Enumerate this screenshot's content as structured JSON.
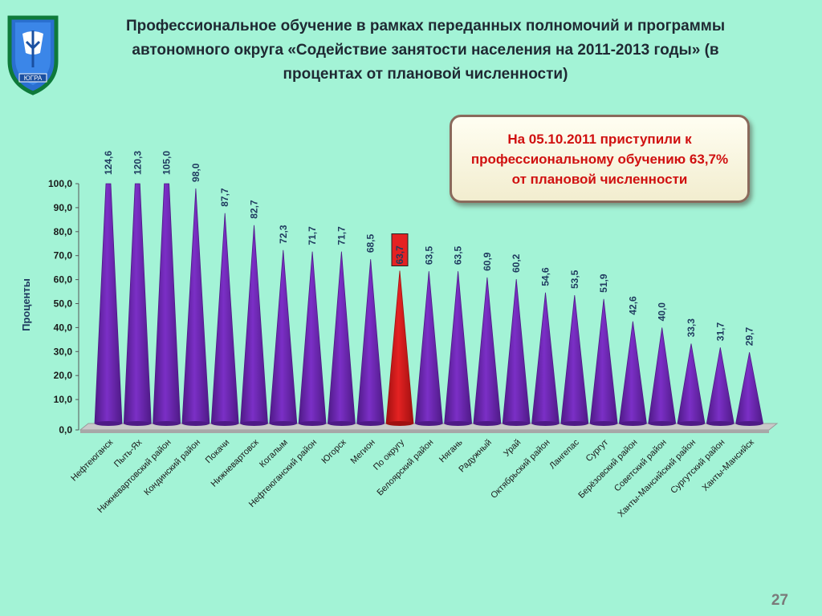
{
  "slide": {
    "title": "Профессиональное обучение в рамках переданных полномочий и программы автономного округа «Содействие занятости населения на 2011-2013 годы» (в процентах от плановой численности)",
    "callout": "На 05.10.2011 приступили к\nпрофессиональному обучению  63,7%\nот плановой численности",
    "page_number": "27",
    "logo_text": "ЮГРА"
  },
  "colors": {
    "bar": "#7b2fc6",
    "bar_dark": "#4e1a86",
    "highlight": "#e42222",
    "highlight_dark": "#a01010",
    "background": "#a3f3d6",
    "label_text": "#1f3a5f"
  },
  "chart_data": {
    "type": "bar",
    "shape": "cone",
    "ylabel": "Проценты",
    "xlabel": "",
    "ylim": [
      0,
      100
    ],
    "yticks": [
      "0,0",
      "10,0",
      "20,0",
      "30,0",
      "40,0",
      "50,0",
      "60,0",
      "70,0",
      "80,0",
      "90,0",
      "100,0"
    ],
    "grid": false,
    "legend": "none",
    "highlight_category": "По округу",
    "categories": [
      "Нефтеюганск",
      "Пыть-Ях",
      "Нижневартовский район",
      "Кондинский район",
      "Покачи",
      "Нижневартовск",
      "Когалым",
      "Нефтеюганский район",
      "Югорск",
      "Мегион",
      "По округу",
      "Белоярский район",
      "Нягань",
      "Радужный",
      "Урай",
      "Октябрьский район",
      "Лангепас",
      "Сургут",
      "Берёзовский район",
      "Советский район",
      "Ханты-Мансийский район",
      "Сургутский район",
      "Ханты-Мансийск"
    ],
    "values": [
      124.6,
      120.3,
      105.0,
      98.0,
      87.7,
      82.7,
      72.3,
      71.7,
      71.7,
      68.5,
      63.7,
      63.5,
      63.5,
      60.9,
      60.2,
      54.6,
      53.5,
      51.9,
      42.6,
      40.0,
      33.3,
      31.7,
      29.7
    ],
    "data_labels": [
      "124,6",
      "120,3",
      "105,0",
      "98,0",
      "87,7",
      "82,7",
      "72,3",
      "71,7",
      "71,7",
      "68,5",
      "63,7",
      "63,5",
      "63,5",
      "60,9",
      "60,2",
      "54,6",
      "53,5",
      "51,9",
      "42,6",
      "40,0",
      "33,3",
      "31,7",
      "29,7"
    ]
  }
}
